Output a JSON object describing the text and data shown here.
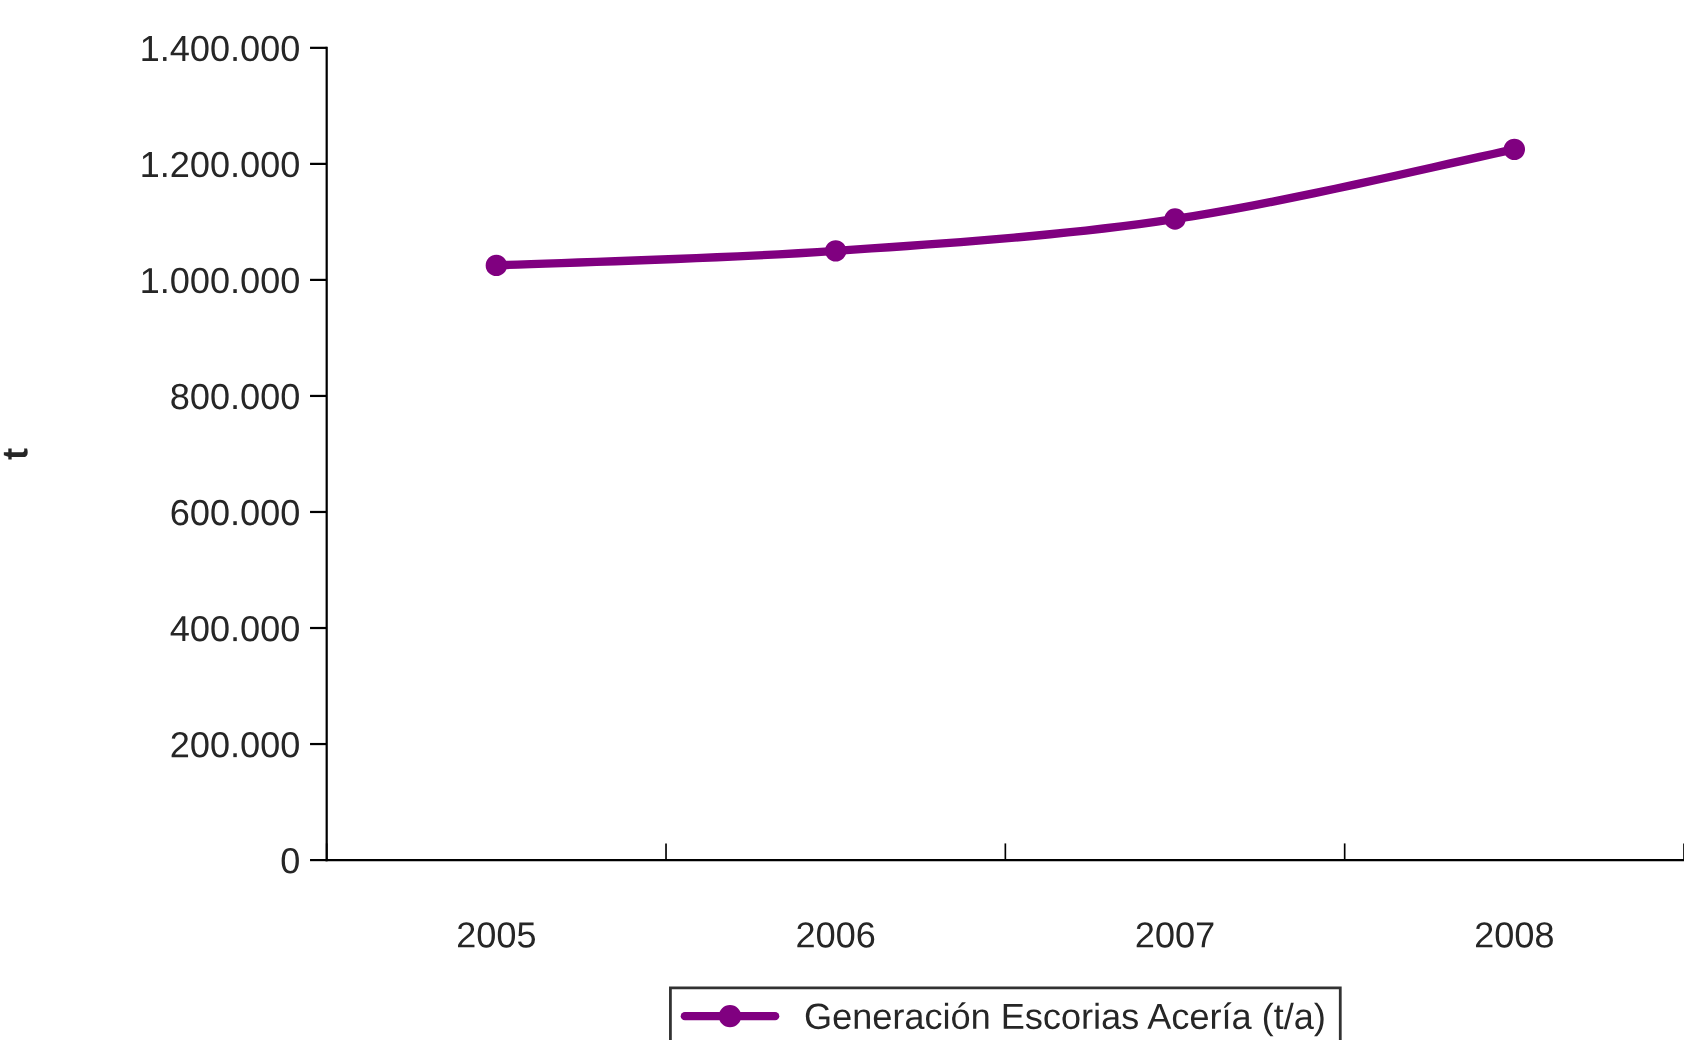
{
  "chart_data": {
    "type": "line",
    "ylabel": "t",
    "categories": [
      "2005",
      "2006",
      "2007",
      "2008"
    ],
    "series": [
      {
        "name": "Generación Escorias Acería (t/a)",
        "color": "#800080",
        "values": [
          1025000,
          1050000,
          1105000,
          1225000
        ]
      }
    ],
    "ylim": [
      0,
      1400000
    ],
    "yticks": [
      0,
      {
        "value": 200000,
        "label": "200.000"
      },
      {
        "value": 400000,
        "label": "400.000"
      },
      {
        "value": 600000,
        "label": "600.000"
      },
      {
        "value": 800000,
        "label": "800.000"
      },
      {
        "value": 1000000,
        "label": "1.000.000"
      },
      {
        "value": 1200000,
        "label": "1.200.000"
      },
      {
        "value": 1400000,
        "label": "1.400.000"
      }
    ],
    "marker": "circle",
    "line_style": "solid",
    "grid": false,
    "legend": "bottom"
  }
}
